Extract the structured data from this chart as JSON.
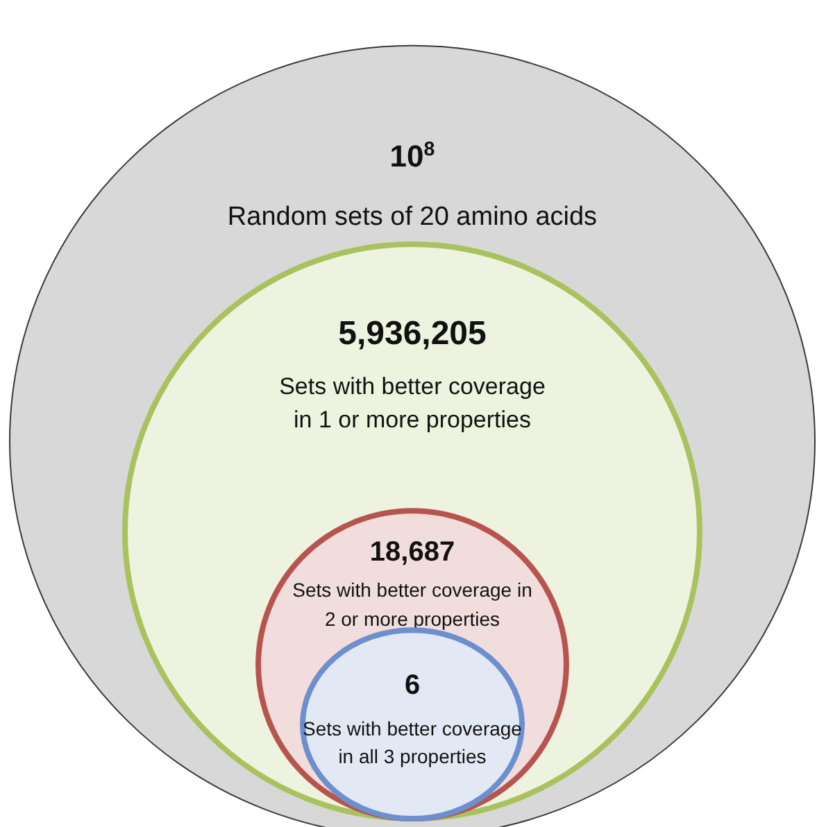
{
  "chart_data": {
    "type": "other",
    "categories": [
      "Random sets of 20 amino acids",
      "Sets with better coverage\nin 1 or more properties",
      "Sets with better coverage in\n2 or more properties",
      "Sets with better coverage\nin all 3 properties"
    ],
    "values": [
      100000000,
      5936205,
      18687,
      6
    ],
    "value_labels": [
      "10$^{8}$",
      "5,936,205",
      "18,687",
      "6"
    ],
    "colors": [
      "#3a3a3a",
      "#a9c25d",
      "#b85450",
      "#6d8fce"
    ]
  }
}
